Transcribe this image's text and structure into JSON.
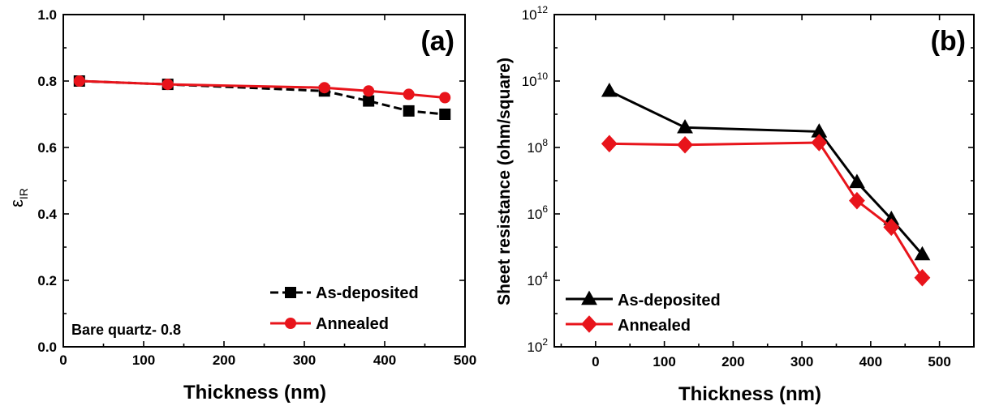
{
  "chart_data": [
    {
      "type": "line",
      "panel_label": "(a)",
      "xlabel": "Thickness (nm)",
      "ylabel": "ε",
      "ylabel_sub": "IR",
      "xlim": [
        0,
        500
      ],
      "ylim": [
        0.0,
        1.0
      ],
      "x_ticks": [
        0,
        100,
        200,
        300,
        400,
        500
      ],
      "y_ticks": [
        0.0,
        0.2,
        0.4,
        0.6,
        0.8,
        1.0
      ],
      "x_tick_labels": [
        "0",
        "100",
        "200",
        "300",
        "400",
        "500"
      ],
      "y_tick_labels": [
        "0.0",
        "0.2",
        "0.4",
        "0.6",
        "0.8",
        "1.0"
      ],
      "annotation": "Bare quartz- 0.8",
      "legend_position": "bottom-right",
      "series": [
        {
          "name": "As-deposited",
          "color": "#000000",
          "marker": "square",
          "line_style": "dashed",
          "x": [
            20,
            130,
            325,
            380,
            430,
            475
          ],
          "y": [
            0.8,
            0.79,
            0.77,
            0.74,
            0.71,
            0.7
          ]
        },
        {
          "name": "Annealed",
          "color": "#e8141b",
          "marker": "circle",
          "line_style": "solid",
          "x": [
            20,
            130,
            325,
            380,
            430,
            475
          ],
          "y": [
            0.8,
            0.79,
            0.78,
            0.77,
            0.76,
            0.75
          ]
        }
      ]
    },
    {
      "type": "line",
      "panel_label": "(b)",
      "xlabel": "Thickness (nm)",
      "ylabel": "Sheet resistance (ohm/square)",
      "xlim": [
        -60,
        550
      ],
      "ylim": [
        100,
        1000000000000
      ],
      "y_scale": "log",
      "x_ticks": [
        0,
        100,
        200,
        300,
        400,
        500
      ],
      "x_tick_labels": [
        "0",
        "100",
        "200",
        "300",
        "400",
        "500"
      ],
      "y_tick_exponents": [
        2,
        4,
        6,
        8,
        10,
        12
      ],
      "y_tick_base": "10",
      "legend_position": "bottom-left",
      "series": [
        {
          "name": "As-deposited",
          "color": "#000000",
          "marker": "triangle",
          "line_style": "solid",
          "x": [
            20,
            130,
            325,
            380,
            430,
            475
          ],
          "y": [
            5000000000,
            400000000,
            300000000,
            9000000,
            700000,
            60000
          ]
        },
        {
          "name": "Annealed",
          "color": "#e8141b",
          "marker": "diamond",
          "line_style": "solid",
          "x": [
            20,
            130,
            325,
            380,
            430,
            475
          ],
          "y": [
            130000000,
            120000000,
            140000000,
            2500000,
            400000,
            12000
          ]
        }
      ]
    }
  ]
}
